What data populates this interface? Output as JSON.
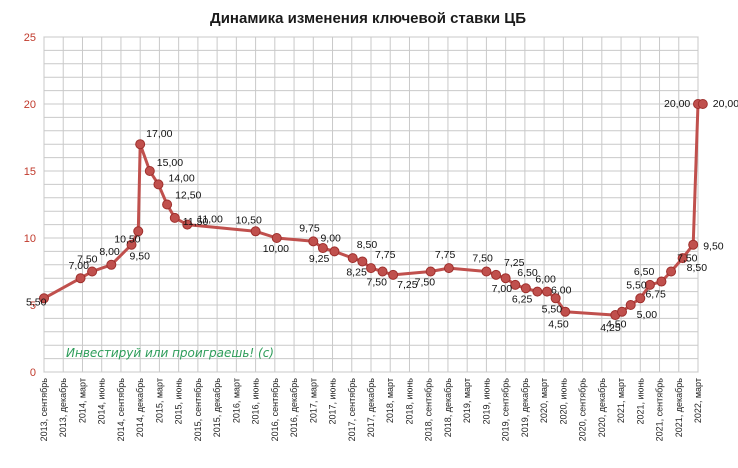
{
  "chart_data": {
    "type": "line",
    "title": "Динамика изменения ключевой ставки ЦБ",
    "watermark": "Инвестируй или проиграешь! (с)",
    "ylim": [
      0,
      25
    ],
    "yticks": [
      0,
      5,
      10,
      15,
      20,
      25
    ],
    "grid": true,
    "legend": "none",
    "series_color": "#c0504d",
    "x_categories": [
      "2013, сентябрь",
      "2013, декабрь",
      "2014, март",
      "2014, июнь",
      "2014, сентябрь",
      "2014, декабрь",
      "2015, март",
      "2015, июнь",
      "2015, сентябрь",
      "2015, декабрь",
      "2016, март",
      "2016, июнь",
      "2016, сентябрь",
      "2016, декабрь",
      "2017, март",
      "2017, июнь",
      "2017, сентябрь",
      "2017, декабрь",
      "2018, март",
      "2018, июнь",
      "2018, сентябрь",
      "2018, декабрь",
      "2019, март",
      "2019, июнь",
      "2019, сентябрь",
      "2019, декабрь",
      "2020, март",
      "2020, июнь",
      "2020, сентябрь",
      "2020, декабрь",
      "2021, март",
      "2021, июнь",
      "2021, сентябрь",
      "2021, декабрь",
      "2022, март"
    ],
    "points": [
      {
        "x": 0,
        "y": 5.5,
        "label": "5,50"
      },
      {
        "x": 1.9,
        "y": 7.0,
        "label": "7,00"
      },
      {
        "x": 2.5,
        "y": 7.5,
        "label": "7,50"
      },
      {
        "x": 3.5,
        "y": 8.0,
        "label": "8,00"
      },
      {
        "x": 4.55,
        "y": 9.5,
        "label": "9,50"
      },
      {
        "x": 4.9,
        "y": 10.5,
        "label": "10,50"
      },
      {
        "x": 5.0,
        "y": 17.0,
        "label": "17,00"
      },
      {
        "x": 5.5,
        "y": 15.0,
        "label": "15,00"
      },
      {
        "x": 5.95,
        "y": 14.0,
        "label": "14,00"
      },
      {
        "x": 6.4,
        "y": 12.5,
        "label": "12,50"
      },
      {
        "x": 6.8,
        "y": 11.5,
        "label": "11,50"
      },
      {
        "x": 7.45,
        "y": 11.0,
        "label": "11,00"
      },
      {
        "x": 11.0,
        "y": 10.5,
        "label": "10,50"
      },
      {
        "x": 12.1,
        "y": 10.0,
        "label": "10,00"
      },
      {
        "x": 14.0,
        "y": 9.75,
        "label": "9,75"
      },
      {
        "x": 14.5,
        "y": 9.25,
        "label": "9,25"
      },
      {
        "x": 15.1,
        "y": 9.0,
        "label": "9,00"
      },
      {
        "x": 16.05,
        "y": 8.5,
        "label": "8,50"
      },
      {
        "x": 16.55,
        "y": 8.25,
        "label": "8,25"
      },
      {
        "x": 17.0,
        "y": 7.75,
        "label": "7,75"
      },
      {
        "x": 17.6,
        "y": 7.5,
        "label": "7,50"
      },
      {
        "x": 18.15,
        "y": 7.25,
        "label": "7,25"
      },
      {
        "x": 20.1,
        "y": 7.5,
        "label": "7,50"
      },
      {
        "x": 21.05,
        "y": 7.75,
        "label": "7,75"
      },
      {
        "x": 23.0,
        "y": 7.5,
        "label": "7,50"
      },
      {
        "x": 23.5,
        "y": 7.25,
        "label": "7,25"
      },
      {
        "x": 24.0,
        "y": 7.0,
        "label": "7,00"
      },
      {
        "x": 24.5,
        "y": 6.5,
        "label": "6,50"
      },
      {
        "x": 25.05,
        "y": 6.25,
        "label": "6,25"
      },
      {
        "x": 25.65,
        "y": 6.0,
        "label": "6,00"
      },
      {
        "x": 26.15,
        "y": 6.0,
        "label": "6,00"
      },
      {
        "x": 26.6,
        "y": 5.5,
        "label": "5,50"
      },
      {
        "x": 27.1,
        "y": 4.5,
        "label": "4,50"
      },
      {
        "x": 29.7,
        "y": 4.25,
        "label": "4,25"
      },
      {
        "x": 30.05,
        "y": 4.5,
        "label": "4,50"
      },
      {
        "x": 30.5,
        "y": 5.0,
        "label": "5,00"
      },
      {
        "x": 31.0,
        "y": 5.5,
        "label": "5,50"
      },
      {
        "x": 31.5,
        "y": 6.5,
        "label": "6,50"
      },
      {
        "x": 32.1,
        "y": 6.75,
        "label": "6,75"
      },
      {
        "x": 32.6,
        "y": 7.5,
        "label": "7,50"
      },
      {
        "x": 33.2,
        "y": 8.5,
        "label": "8,50"
      },
      {
        "x": 33.75,
        "y": 9.5,
        "label": "9,50"
      },
      {
        "x": 34.0,
        "y": 20.0,
        "label": "20,00"
      },
      {
        "x": 34.25,
        "y": 20.0,
        "label": "20,00"
      }
    ]
  }
}
